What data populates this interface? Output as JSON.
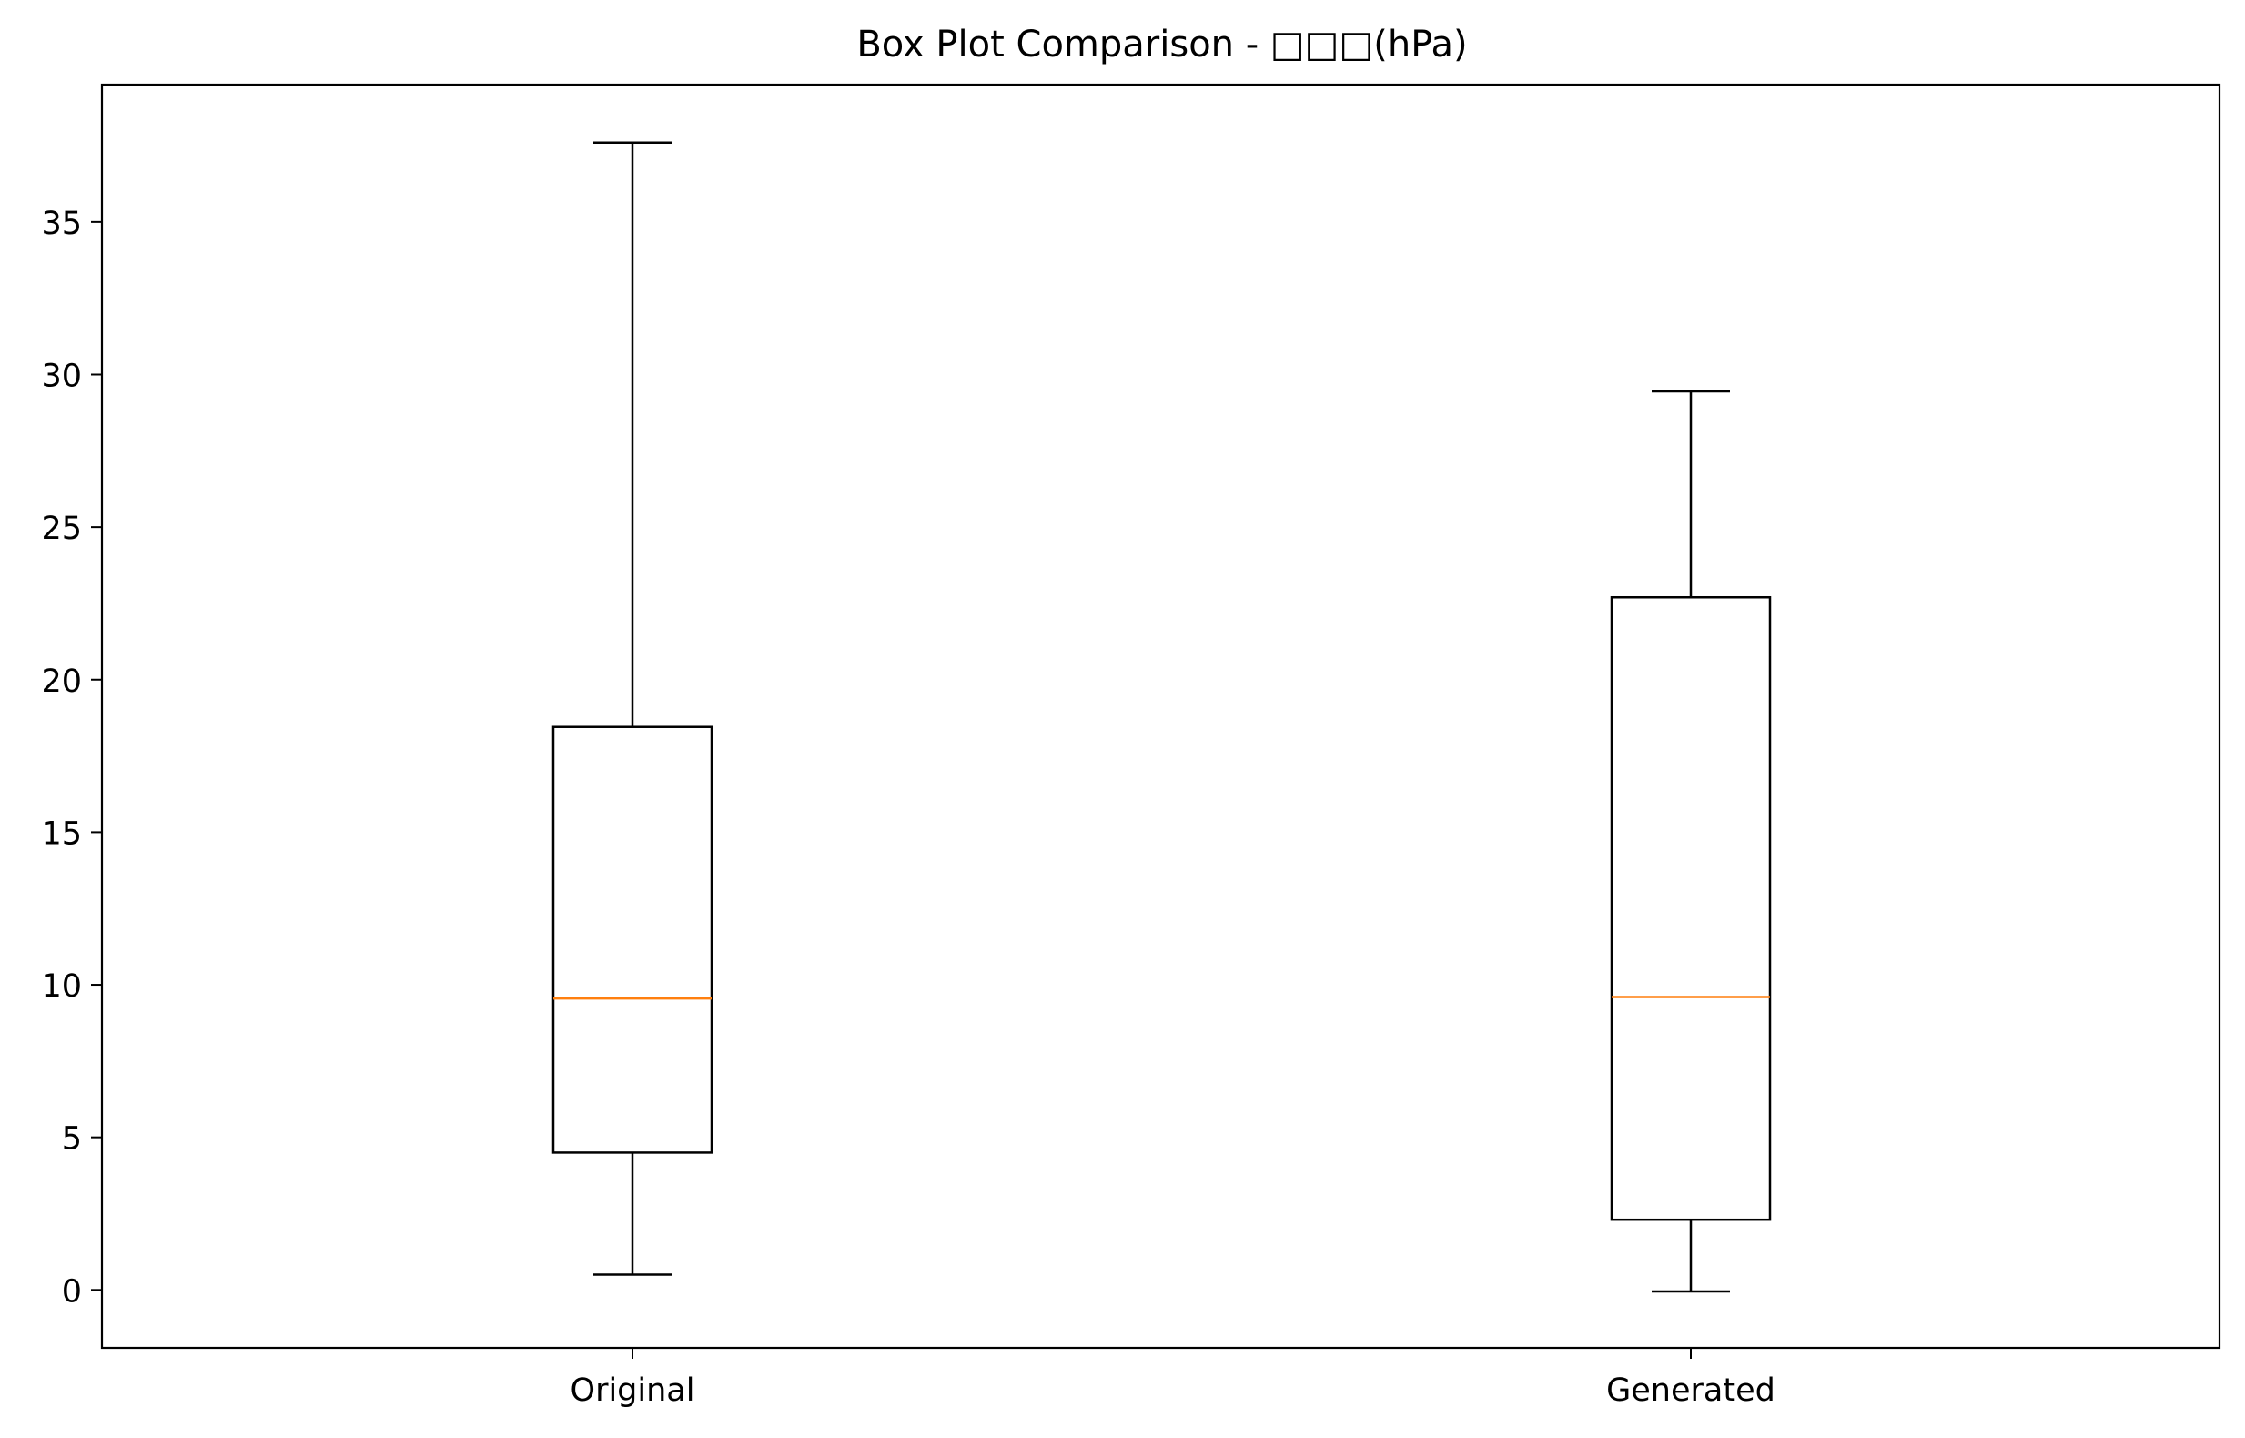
{
  "chart_data": {
    "type": "box",
    "title": "Box Plot Comparison - □□□(hPa)",
    "xlabel": "",
    "ylabel": "",
    "ylim": [
      -1.9,
      39.5
    ],
    "yticks": [
      0,
      5,
      10,
      15,
      20,
      25,
      30,
      35
    ],
    "grid": false,
    "categories": [
      "Original",
      "Generated"
    ],
    "boxes": [
      {
        "category": "Original",
        "whisker_low": 0.5,
        "q1": 4.5,
        "median": 9.55,
        "q3": 18.45,
        "whisker_high": 37.6
      },
      {
        "category": "Generated",
        "whisker_low": -0.05,
        "q1": 2.3,
        "median": 9.6,
        "q3": 22.7,
        "whisker_high": 29.45
      }
    ],
    "colors": {
      "box": "#000000",
      "median": "#ff7f0e",
      "axes": "#000000"
    }
  }
}
